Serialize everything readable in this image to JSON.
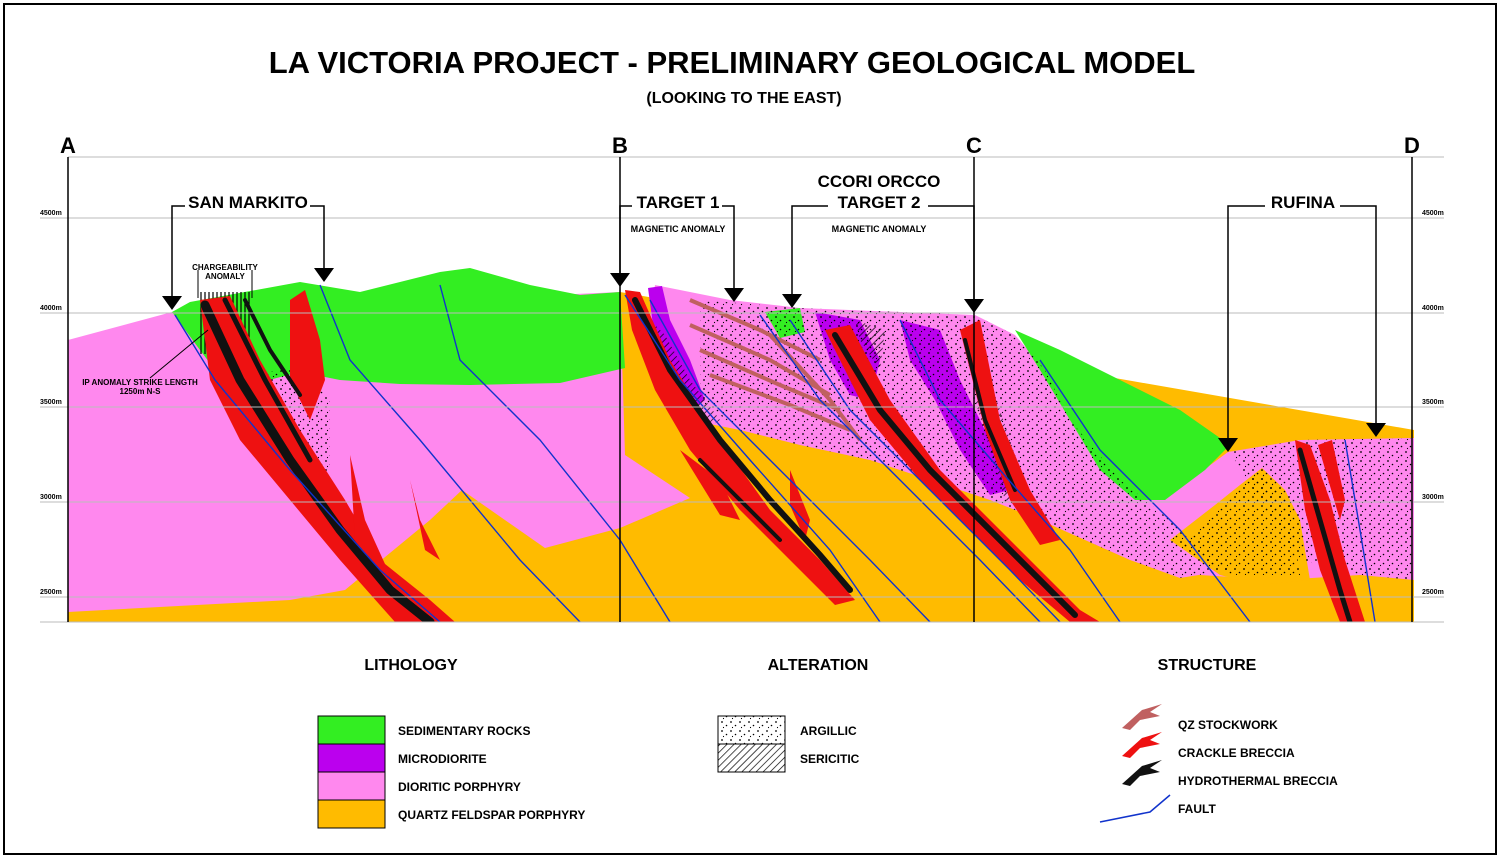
{
  "title": "LA VICTORIA PROJECT - PRELIMINARY GEOLOGICAL MODEL",
  "subtitle": "(LOOKING TO THE EAST)",
  "sections": [
    "A",
    "B",
    "C",
    "D"
  ],
  "elevations": [
    "4500m",
    "4000m",
    "3500m",
    "3000m",
    "2500m"
  ],
  "targets": {
    "san_markito": "SAN MARKITO",
    "target1": "TARGET 1",
    "ccori_orcco": "CCORI ORCCO",
    "target2": "TARGET 2",
    "rufina": "RUFINA",
    "magnetic_anomaly": "MAGNETIC ANOMALY",
    "chargeability": "CHARGEABILITY",
    "anomaly": "ANOMALY",
    "ip_line1": "IP ANOMALY STRIKE LENGTH",
    "ip_line2": "1250m N-S"
  },
  "legend": {
    "lithology": {
      "heading": "LITHOLOGY",
      "items": [
        {
          "label": "SEDIMENTARY ROCKS",
          "color": "#33ee22"
        },
        {
          "label": "MICRODIORITE",
          "color": "#bb00ee"
        },
        {
          "label": "DIORITIC PORPHYRY",
          "color": "#ff88ee"
        },
        {
          "label": "QUARTZ FELDSPAR PORPHYRY",
          "color": "#ffbb00"
        }
      ]
    },
    "alteration": {
      "heading": "ALTERATION",
      "items": [
        {
          "label": "ARGILLIC",
          "pattern": "dots"
        },
        {
          "label": "SERICITIC",
          "pattern": "hatch"
        }
      ]
    },
    "structure": {
      "heading": "STRUCTURE",
      "items": [
        {
          "label": "QZ STOCKWORK",
          "color": "#c06060"
        },
        {
          "label": "CRACKLE BRECCIA",
          "color": "#ee1111"
        },
        {
          "label": "HYDROTHERMAL BRECCIA",
          "color": "#111111"
        },
        {
          "label": "FAULT",
          "color": "#1133cc"
        }
      ]
    }
  }
}
